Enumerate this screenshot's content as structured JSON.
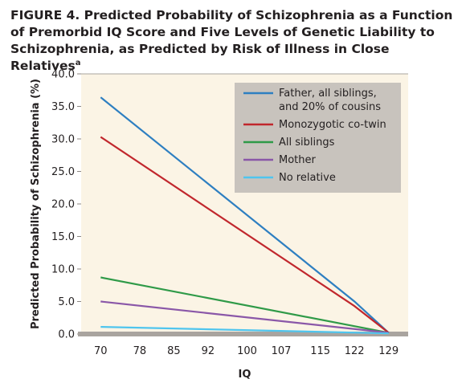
{
  "figure": {
    "label": "FIGURE 4.",
    "title": "Predicted Probability of Schizophrenia as a Function of Premorbid IQ Score and Five Levels of Genetic Liability to Schizophrenia, as Predicted by Risk of Illness in Close Relatives",
    "footnote_marker": "a"
  },
  "chart_data": {
    "type": "line",
    "xlabel": "IQ",
    "ylabel": "Predicted Probability of Schizophrenia (%)",
    "x": [
      70,
      78,
      85,
      92,
      100,
      107,
      115,
      122,
      129
    ],
    "xlim": [
      66,
      133
    ],
    "ylim": [
      0,
      40
    ],
    "yticks": [
      "0.0",
      "5.0",
      "10.0",
      "15.0",
      "20.0",
      "25.0",
      "30.0",
      "35.0",
      "40.0"
    ],
    "legend_position": "top-right",
    "grid": false,
    "colors": {
      "plot_background": "#fbf4e5",
      "legend_background": "#c8c3bd",
      "baseline": "#a9a49f"
    },
    "series": [
      {
        "name": "Father, all siblings,\nand 20% of cousins",
        "color": "#2e7fc1",
        "points": [
          [
            70,
            36.4
          ],
          [
            122,
            5.0
          ],
          [
            129,
            0.2
          ]
        ]
      },
      {
        "name": "Monozygotic co-twin",
        "color": "#c1272d",
        "points": [
          [
            70,
            30.3
          ],
          [
            122,
            4.3
          ],
          [
            129,
            0.2
          ]
        ]
      },
      {
        "name": "All siblings",
        "color": "#2f9a48",
        "points": [
          [
            70,
            8.7
          ],
          [
            129,
            0.2
          ]
        ]
      },
      {
        "name": "Mother",
        "color": "#8a57a8",
        "points": [
          [
            70,
            5.0
          ],
          [
            129,
            0.2
          ]
        ]
      },
      {
        "name": "No relative",
        "color": "#4fc5ee",
        "points": [
          [
            70,
            1.1
          ],
          [
            129,
            0.1
          ]
        ]
      }
    ]
  }
}
